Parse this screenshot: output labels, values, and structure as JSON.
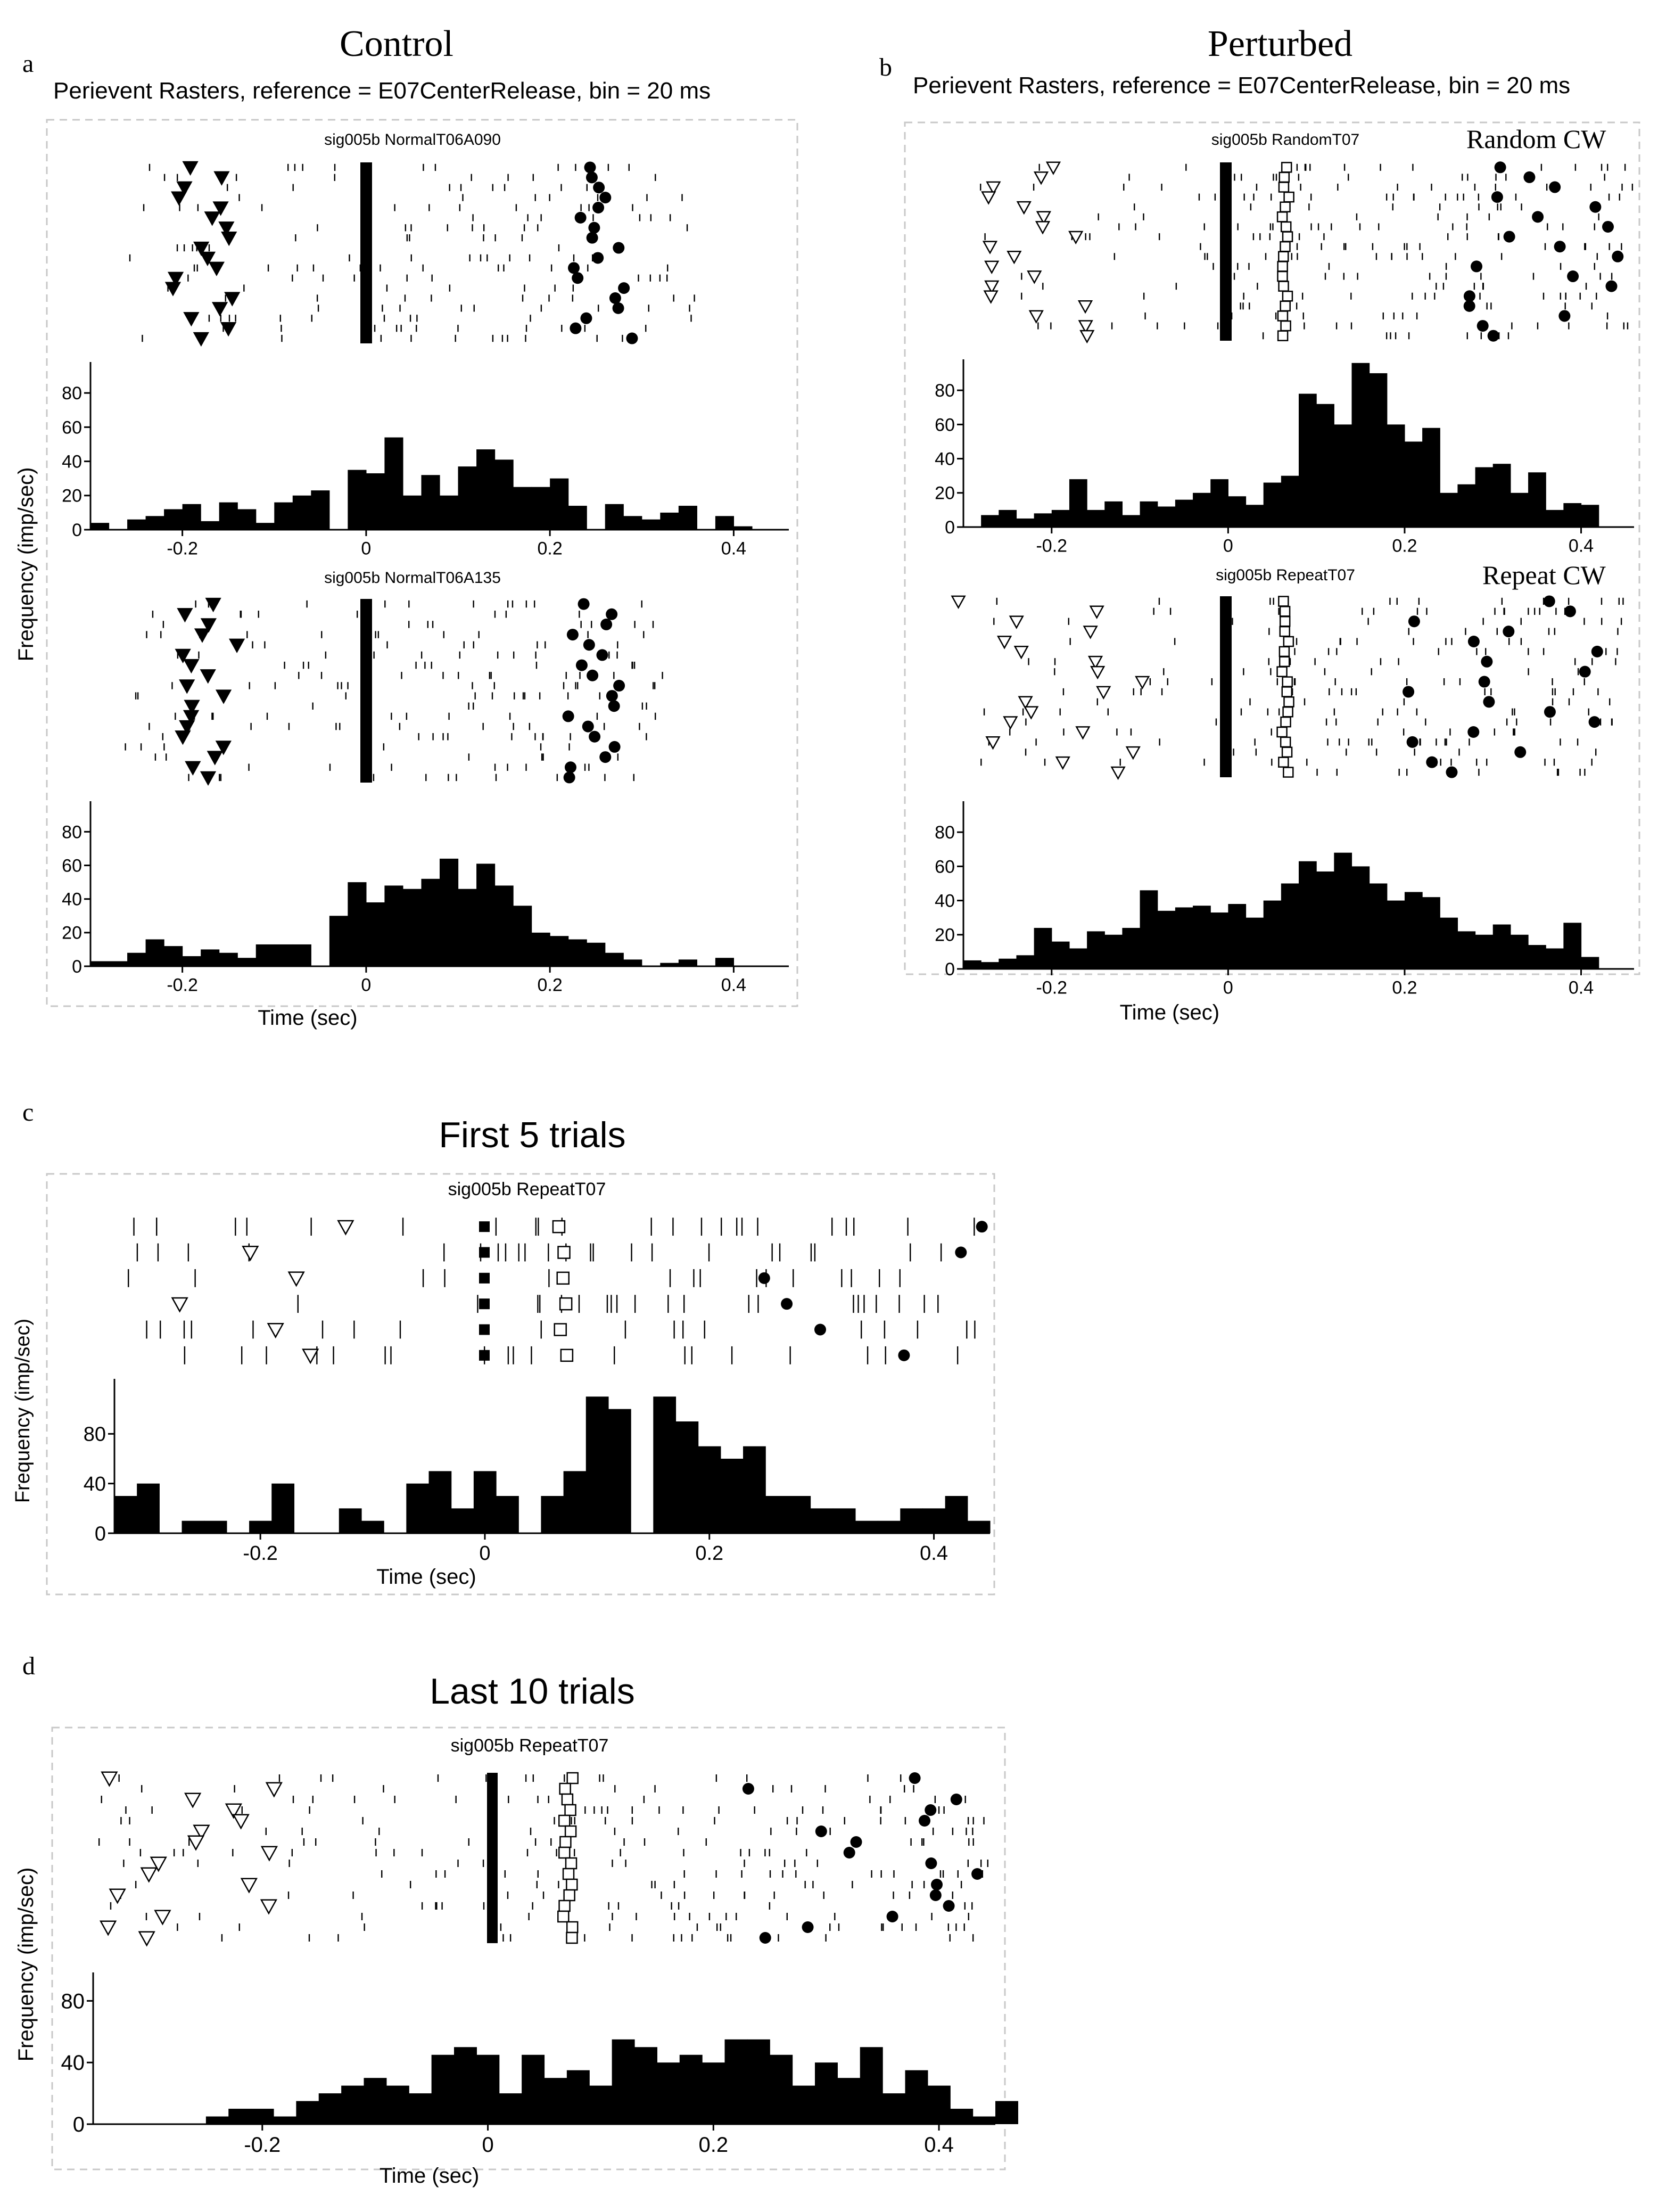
{
  "figure": {
    "panel_letters": [
      "a",
      "b",
      "c",
      "d"
    ],
    "headers": {
      "control": "Control",
      "perturbed": "Perturbed",
      "first5": "First 5  trials",
      "last10": "Last 10 trials"
    },
    "subtitles": {
      "a": "Perievent Rasters, reference = E07CenterRelease, bin = 20 ms",
      "b": "Perievent Rasters, reference = E07CenterRelease, bin = 20 ms"
    },
    "y_axis_label": "Frequency (imp/sec)",
    "x_axis_label": "Time (sec)"
  },
  "chart_data": [
    {
      "type": "bar",
      "id": "a1",
      "title": "sig005b NormalT06A090",
      "xlabel": "Time (sec)",
      "ylabel": "Frequency (imp/sec)",
      "xlim": [
        -0.3,
        0.46
      ],
      "ylim": [
        0,
        95
      ],
      "xticks": [
        "-0.2",
        "0",
        "0.2",
        "0.4"
      ],
      "yticks": [
        "0",
        "20",
        "40",
        "60",
        "80"
      ],
      "bin_start": -0.3,
      "bin_width": 0.02,
      "values": [
        4,
        0,
        6,
        8,
        12,
        15,
        5,
        16,
        12,
        4,
        16,
        20,
        23,
        0,
        35,
        33,
        54,
        20,
        32,
        20,
        37,
        47,
        41,
        25,
        25,
        30,
        14,
        0,
        15,
        8,
        6,
        10,
        14,
        0,
        8,
        2
      ]
    },
    {
      "type": "bar",
      "id": "a2",
      "title": "sig005b NormalT06A135",
      "xlabel": "Time (sec)",
      "ylabel": "Frequency (imp/sec)",
      "xlim": [
        -0.3,
        0.46
      ],
      "ylim": [
        0,
        95
      ],
      "xticks": [
        "-0.2",
        "0",
        "0.2",
        "0.4"
      ],
      "yticks": [
        "0",
        "20",
        "40",
        "60",
        "80"
      ],
      "bin_start": -0.3,
      "bin_width": 0.02,
      "values": [
        3,
        3,
        8,
        16,
        12,
        6,
        10,
        8,
        5,
        13,
        13,
        13,
        0,
        30,
        50,
        38,
        48,
        46,
        52,
        64,
        46,
        61,
        48,
        36,
        20,
        18,
        16,
        14,
        8,
        4,
        0,
        2,
        4,
        0,
        5,
        0
      ]
    },
    {
      "type": "bar",
      "id": "b1",
      "title": "sig005b RandomT07",
      "annotation": "Random CW",
      "xlabel": "Time (sec)",
      "ylabel": "Frequency (imp/sec)",
      "xlim": [
        -0.3,
        0.46
      ],
      "ylim": [
        0,
        95
      ],
      "xticks": [
        "-0.2",
        "0",
        "0.2",
        "0.4"
      ],
      "yticks": [
        "0",
        "20",
        "40",
        "60",
        "80"
      ],
      "bin_start": -0.3,
      "bin_width": 0.02,
      "values": [
        0,
        7,
        10,
        5,
        8,
        10,
        28,
        10,
        15,
        7,
        15,
        12,
        16,
        20,
        28,
        18,
        13,
        26,
        30,
        78,
        72,
        60,
        96,
        90,
        60,
        50,
        58,
        20,
        25,
        35,
        37,
        20,
        32,
        10,
        14,
        13
      ]
    },
    {
      "type": "bar",
      "id": "b2",
      "title": "sig005b RepeatT07",
      "annotation": "Repeat  CW",
      "xlabel": "Time (sec)",
      "ylabel": "Frequency (imp/sec)",
      "xlim": [
        -0.3,
        0.46
      ],
      "ylim": [
        0,
        95
      ],
      "xticks": [
        "-0.2",
        "0",
        "0.2",
        "0.4"
      ],
      "yticks": [
        "0",
        "20",
        "40",
        "60",
        "80"
      ],
      "bin_start": -0.3,
      "bin_width": 0.02,
      "values": [
        5,
        4,
        6,
        8,
        24,
        16,
        12,
        22,
        20,
        24,
        46,
        34,
        36,
        37,
        33,
        38,
        30,
        40,
        50,
        63,
        57,
        68,
        60,
        50,
        40,
        45,
        42,
        30,
        22,
        20,
        26,
        20,
        14,
        12,
        27,
        7
      ]
    },
    {
      "type": "bar",
      "id": "c",
      "title": "sig005b RepeatT07",
      "xlabel": "Time (sec)",
      "ylabel": "Frequency (imp/sec)",
      "xlim": [
        -0.33,
        0.45
      ],
      "ylim": [
        0,
        120
      ],
      "xticks": [
        "-0.2",
        "0",
        "0.2",
        "0.4"
      ],
      "yticks": [
        "0",
        "40",
        "80"
      ],
      "bin_start": -0.33,
      "bin_width": 0.02,
      "values": [
        30,
        40,
        0,
        10,
        10,
        0,
        10,
        40,
        0,
        0,
        20,
        10,
        0,
        40,
        50,
        20,
        50,
        30,
        0,
        30,
        50,
        110,
        100,
        0,
        110,
        90,
        70,
        60,
        70,
        30,
        30,
        20,
        20,
        10,
        10,
        20,
        20,
        30,
        10
      ]
    },
    {
      "type": "bar",
      "id": "d",
      "title": "sig005b RepeatT07",
      "xlabel": "Time (sec)",
      "ylabel": "Frequency (imp/sec)",
      "xlim": [
        -0.35,
        0.45
      ],
      "ylim": [
        0,
        95
      ],
      "xticks": [
        "-0.2",
        "0",
        "0.2",
        "0.4"
      ],
      "yticks": [
        "0",
        "40",
        "80"
      ],
      "bin_start": -0.35,
      "bin_width": 0.02,
      "values": [
        0,
        0,
        0,
        0,
        0,
        5,
        10,
        10,
        5,
        15,
        20,
        25,
        30,
        25,
        20,
        45,
        50,
        45,
        20,
        45,
        30,
        35,
        25,
        55,
        50,
        40,
        45,
        40,
        55,
        55,
        45,
        25,
        40,
        30,
        50,
        20,
        35,
        25,
        10,
        5,
        15
      ]
    }
  ]
}
